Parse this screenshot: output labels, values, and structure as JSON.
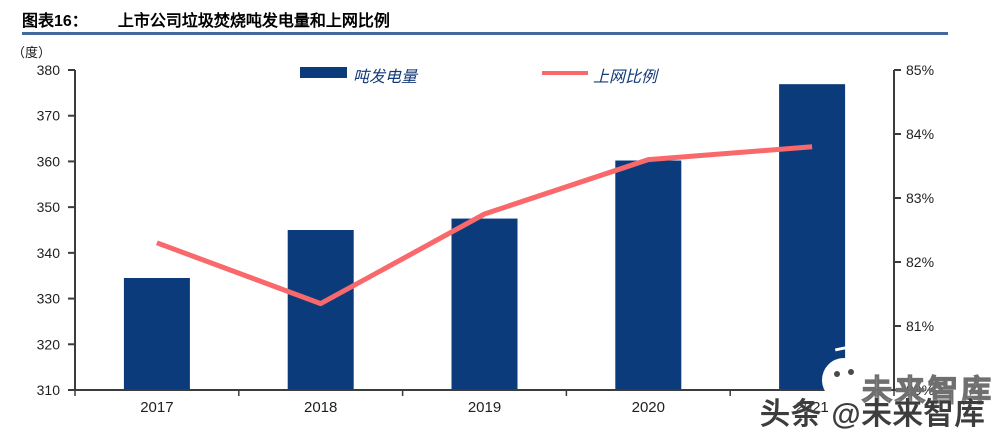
{
  "header": {
    "label": "图表16：",
    "title": "上市公司垃圾焚烧吨发电量和上网比例"
  },
  "unit_label": "（度）",
  "colors": {
    "bar": "#0c3b7b",
    "line": "#f9696b",
    "title_underline": "#44699d",
    "axis": "#3c3c3c",
    "tick_text": "#1f1f1f",
    "legend_text": "#123a78"
  },
  "legend": {
    "bar_label": "吨发电量",
    "line_label": "上网比例"
  },
  "chart_data": {
    "type": "bar",
    "subtype": "combo-bar-line-dual-axis",
    "title": "上市公司垃圾焚烧吨发电量和上网比例",
    "categories": [
      "2017",
      "2018",
      "2019",
      "2020",
      "2021"
    ],
    "series": [
      {
        "name": "吨发电量",
        "type": "bar",
        "axis": "left",
        "unit": "度",
        "color": "#0c3b7b",
        "values": [
          334.5,
          345.0,
          347.5,
          360.2,
          376.9
        ]
      },
      {
        "name": "上网比例",
        "type": "line",
        "axis": "right",
        "unit": "%",
        "color": "#f9696b",
        "values": [
          82.3,
          81.35,
          82.75,
          83.6,
          83.8
        ]
      }
    ],
    "left_axis": {
      "label": "（度）",
      "min": 310,
      "max": 380,
      "step": 10,
      "ticks": [
        "380",
        "370",
        "360",
        "350",
        "340",
        "330",
        "320",
        "310"
      ]
    },
    "right_axis": {
      "min": 80,
      "max": 85,
      "step": 1,
      "ticks": [
        "85%",
        "84%",
        "83%",
        "82%",
        "81%",
        "80%"
      ]
    },
    "grid": false,
    "legend_position": "top-center"
  },
  "watermark": {
    "outline_text": "未来智库",
    "solid_text": "头条 @未来智库",
    "icon": "chat-face-icon"
  }
}
